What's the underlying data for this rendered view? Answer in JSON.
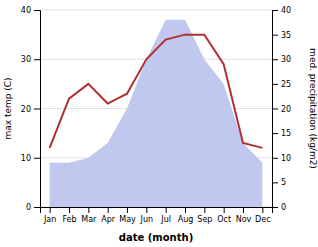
{
  "chart_data": {
    "type": "line",
    "xlabel": "date (month)",
    "ylabel": "max temp (C)",
    "y2label": "med. precipitation (kg/m2)",
    "categories": [
      "Jan",
      "Feb",
      "Mar",
      "Apr",
      "May",
      "Jun",
      "Jul",
      "Aug",
      "Sep",
      "Oct",
      "Nov",
      "Dec"
    ],
    "series": [
      {
        "type": "area",
        "axis": "y2",
        "color": "#c0c8f0",
        "values": [
          9,
          9,
          10,
          13,
          20,
          30,
          38,
          38,
          30,
          25,
          13,
          9
        ]
      },
      {
        "type": "line",
        "color": "#b03030",
        "values": [
          12,
          22,
          25,
          21,
          23,
          30,
          34,
          35,
          35,
          29,
          13,
          12
        ]
      }
    ],
    "ylim": [
      0,
      40
    ],
    "yticks": [
      0,
      10,
      20,
      30,
      40
    ],
    "y2lim": [
      0,
      40
    ],
    "y2ticks": [
      0,
      5,
      10,
      15,
      20,
      25,
      30,
      35,
      40
    ],
    "grid": true
  }
}
